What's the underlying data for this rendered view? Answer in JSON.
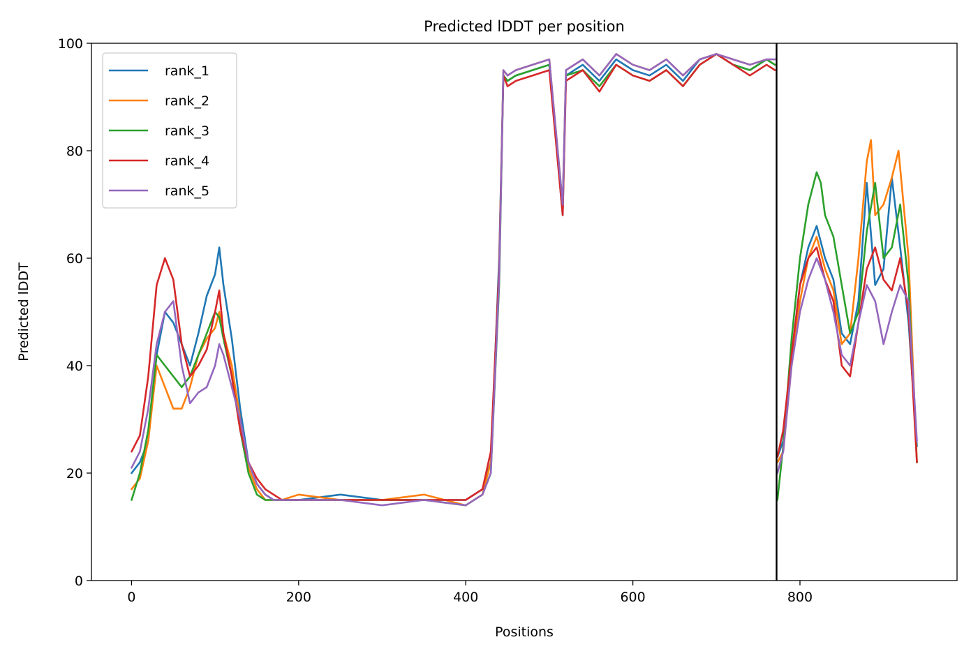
{
  "chart_data": {
    "type": "line",
    "title": "Predicted lDDT per position",
    "xlabel": "Positions",
    "ylabel": "Predicted lDDT",
    "xlim": [
      -48,
      988
    ],
    "ylim": [
      0,
      100
    ],
    "xticks": [
      0,
      200,
      400,
      600,
      800
    ],
    "yticks": [
      0,
      20,
      40,
      60,
      80,
      100
    ],
    "chain_break": 772,
    "grid": false,
    "legend_position": "top-left",
    "series": [
      {
        "name": "rank_1",
        "color": "#1f77b4",
        "x": [
          0,
          10,
          20,
          30,
          40,
          50,
          60,
          70,
          80,
          90,
          100,
          105,
          110,
          120,
          130,
          140,
          150,
          160,
          170,
          180,
          200,
          250,
          300,
          350,
          400,
          420,
          430,
          440,
          445,
          450,
          460,
          480,
          500,
          516,
          520,
          540,
          560,
          580,
          600,
          620,
          640,
          660,
          680,
          700,
          720,
          740,
          760,
          770,
          773,
          780,
          790,
          800,
          810,
          820,
          830,
          840,
          850,
          860,
          870,
          880,
          890,
          900,
          910,
          920,
          930,
          940
        ],
        "y": [
          20,
          22,
          26,
          42,
          50,
          48,
          44,
          40,
          46,
          53,
          57,
          62,
          55,
          45,
          32,
          22,
          18,
          16,
          15,
          15,
          15,
          16,
          15,
          15,
          15,
          17,
          22,
          60,
          94,
          93,
          94,
          95,
          96,
          68,
          94,
          96,
          93,
          97,
          95,
          94,
          96,
          93,
          97,
          98,
          96,
          95,
          97,
          96,
          23,
          26,
          42,
          55,
          62,
          66,
          60,
          56,
          46,
          44,
          52,
          74,
          55,
          58,
          75,
          62,
          48,
          25
        ]
      },
      {
        "name": "rank_2",
        "color": "#ff7f0e",
        "x": [
          0,
          10,
          20,
          30,
          40,
          50,
          60,
          70,
          80,
          90,
          100,
          105,
          110,
          120,
          130,
          140,
          150,
          160,
          170,
          180,
          200,
          250,
          300,
          350,
          400,
          420,
          430,
          440,
          445,
          450,
          460,
          480,
          500,
          516,
          520,
          540,
          560,
          580,
          600,
          620,
          640,
          660,
          680,
          700,
          720,
          740,
          760,
          770,
          773,
          780,
          790,
          800,
          810,
          820,
          830,
          840,
          850,
          860,
          870,
          880,
          885,
          890,
          900,
          910,
          918,
          930,
          940
        ],
        "y": [
          17,
          19,
          26,
          40,
          36,
          32,
          32,
          36,
          42,
          45,
          47,
          50,
          46,
          40,
          30,
          21,
          17,
          15,
          15,
          15,
          16,
          15,
          15,
          16,
          14,
          16,
          22,
          58,
          95,
          94,
          95,
          96,
          97,
          70,
          95,
          97,
          94,
          98,
          96,
          95,
          97,
          94,
          97,
          98,
          97,
          96,
          97,
          96,
          22,
          24,
          40,
          52,
          60,
          64,
          58,
          54,
          44,
          46,
          60,
          78,
          82,
          68,
          70,
          75,
          80,
          60,
          22
        ]
      },
      {
        "name": "rank_3",
        "color": "#2ca02c",
        "x": [
          0,
          10,
          20,
          30,
          40,
          50,
          60,
          70,
          80,
          90,
          100,
          105,
          110,
          120,
          130,
          140,
          150,
          160,
          170,
          180,
          200,
          250,
          300,
          350,
          400,
          420,
          430,
          440,
          445,
          450,
          460,
          480,
          500,
          516,
          520,
          540,
          560,
          580,
          600,
          620,
          640,
          660,
          680,
          700,
          720,
          740,
          760,
          770,
          773,
          780,
          790,
          800,
          810,
          820,
          825,
          830,
          840,
          850,
          860,
          870,
          880,
          890,
          900,
          910,
          920,
          930,
          940
        ],
        "y": [
          15,
          20,
          28,
          42,
          40,
          38,
          36,
          38,
          42,
          46,
          50,
          49,
          45,
          38,
          28,
          20,
          16,
          15,
          15,
          15,
          15,
          15,
          15,
          15,
          14,
          16,
          20,
          55,
          94,
          93,
          94,
          95,
          96,
          70,
          94,
          95,
          92,
          96,
          94,
          93,
          95,
          92,
          96,
          98,
          96,
          95,
          97,
          96,
          15,
          25,
          45,
          60,
          70,
          76,
          74,
          68,
          64,
          55,
          46,
          50,
          65,
          74,
          60,
          62,
          70,
          55,
          22
        ]
      },
      {
        "name": "rank_4",
        "color": "#d62728",
        "x": [
          0,
          10,
          20,
          30,
          40,
          45,
          50,
          60,
          70,
          80,
          90,
          100,
          105,
          110,
          120,
          130,
          140,
          150,
          160,
          170,
          180,
          200,
          250,
          300,
          350,
          400,
          420,
          430,
          440,
          445,
          450,
          460,
          480,
          500,
          516,
          520,
          540,
          560,
          580,
          600,
          620,
          640,
          660,
          680,
          700,
          720,
          740,
          760,
          770,
          773,
          780,
          790,
          800,
          810,
          820,
          830,
          840,
          850,
          860,
          870,
          880,
          890,
          900,
          910,
          920,
          930,
          940
        ],
        "y": [
          24,
          27,
          38,
          55,
          60,
          58,
          56,
          44,
          38,
          40,
          43,
          50,
          54,
          46,
          38,
          28,
          22,
          19,
          17,
          16,
          15,
          15,
          15,
          15,
          15,
          15,
          17,
          24,
          58,
          94,
          92,
          93,
          94,
          95,
          68,
          93,
          95,
          91,
          96,
          94,
          93,
          95,
          92,
          96,
          98,
          96,
          94,
          96,
          95,
          23,
          28,
          42,
          55,
          60,
          62,
          56,
          52,
          40,
          38,
          48,
          58,
          62,
          56,
          54,
          60,
          50,
          22
        ]
      },
      {
        "name": "rank_5",
        "color": "#9467bd",
        "x": [
          0,
          10,
          20,
          30,
          40,
          50,
          60,
          70,
          80,
          90,
          100,
          105,
          110,
          120,
          130,
          140,
          150,
          160,
          170,
          180,
          200,
          250,
          300,
          350,
          400,
          420,
          430,
          440,
          445,
          450,
          460,
          480,
          500,
          516,
          520,
          540,
          560,
          580,
          600,
          620,
          640,
          660,
          680,
          700,
          720,
          740,
          760,
          770,
          773,
          780,
          790,
          800,
          810,
          820,
          830,
          840,
          850,
          860,
          870,
          880,
          890,
          900,
          910,
          920,
          930,
          940
        ],
        "y": [
          21,
          24,
          32,
          44,
          50,
          52,
          40,
          33,
          35,
          36,
          40,
          44,
          42,
          36,
          30,
          22,
          18,
          16,
          15,
          15,
          15,
          15,
          14,
          15,
          14,
          16,
          20,
          56,
          95,
          94,
          95,
          96,
          97,
          70,
          95,
          97,
          94,
          98,
          96,
          95,
          97,
          94,
          97,
          98,
          97,
          96,
          97,
          97,
          20,
          24,
          40,
          50,
          56,
          60,
          56,
          50,
          42,
          40,
          48,
          55,
          52,
          44,
          50,
          55,
          52,
          26
        ]
      }
    ]
  }
}
